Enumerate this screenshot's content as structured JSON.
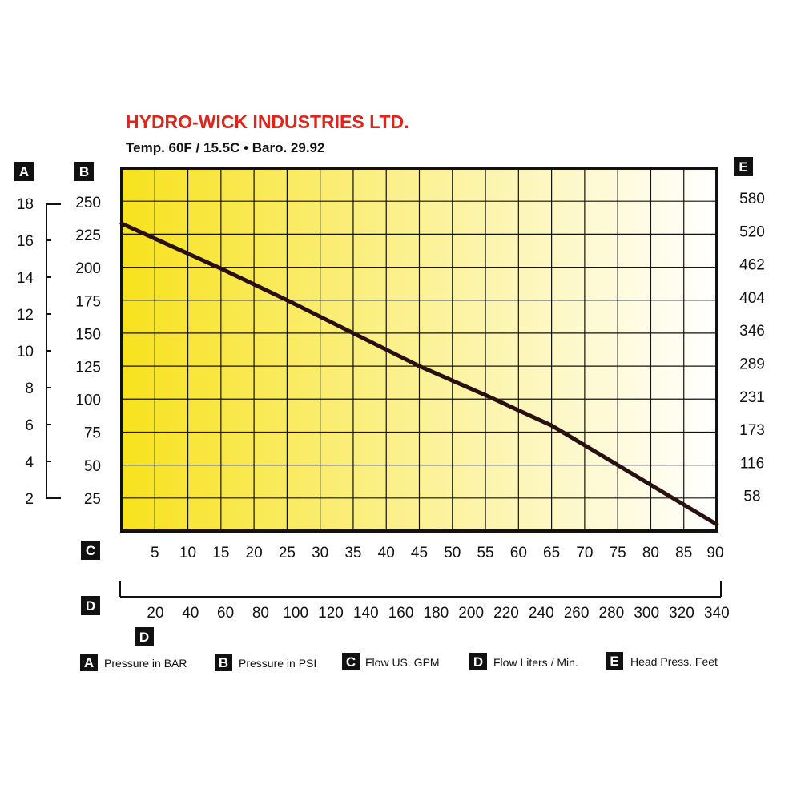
{
  "header": {
    "company": "HYDRO-WICK INDUSTRIES LTD.",
    "conditions": "Temp. 60F / 15.5C  •  Baro. 29.92"
  },
  "axis_badges": {
    "A": "A",
    "B": "B",
    "C": "C",
    "D": "D",
    "D2": "D",
    "E": "E"
  },
  "legend": [
    {
      "letter": "A",
      "label": "Pressure in BAR"
    },
    {
      "letter": "B",
      "label": "Pressure in PSI"
    },
    {
      "letter": "C",
      "label": "Flow US. GPM"
    },
    {
      "letter": "D",
      "label": "Flow Liters / Min."
    },
    {
      "letter": "E",
      "label": "Head Press. Feet"
    }
  ],
  "colors": {
    "title_red": "#e2231a",
    "gradient_start": "#f7e21c",
    "gradient_end": "#ffffff",
    "line": "#2a0f10",
    "grid": "#111111"
  },
  "chart_data": {
    "type": "line",
    "title": "HYDRO-WICK INDUSTRIES LTD.",
    "subtitle": "Temp. 60F / 15.5C  •  Baro. 29.92",
    "x_axis": {
      "label": "Flow US. GPM",
      "ticks": [
        "5",
        "10",
        "15",
        "20",
        "25",
        "30",
        "35",
        "40",
        "45",
        "50",
        "55",
        "60",
        "65",
        "70",
        "75",
        "80",
        "85",
        "90"
      ],
      "range": [
        0,
        90
      ]
    },
    "x_axis_secondary": {
      "label": "Flow Liters / Min.",
      "ticks": [
        "20",
        "40",
        "60",
        "80",
        "100",
        "120",
        "140",
        "160",
        "180",
        "200",
        "220",
        "240",
        "260",
        "280",
        "300",
        "320",
        "340"
      ]
    },
    "y_axis": {
      "label": "Pressure in PSI",
      "ticks": [
        "250",
        "225",
        "200",
        "175",
        "150",
        "125",
        "100",
        "75",
        "50",
        "25"
      ],
      "range": [
        0,
        275
      ]
    },
    "y_axis_bar": {
      "label": "Pressure in BAR",
      "ticks": [
        "18",
        "16",
        "14",
        "12",
        "10",
        "8",
        "6",
        "4",
        "2"
      ]
    },
    "y_axis_head": {
      "label": "Head Press. Feet",
      "ticks": [
        "580",
        "520",
        "462",
        "404",
        "346",
        "289",
        "231",
        "173",
        "116",
        "58"
      ]
    },
    "series": [
      {
        "points": [
          [
            0,
            233
          ],
          [
            15,
            199
          ],
          [
            25,
            175
          ],
          [
            35,
            150
          ],
          [
            45,
            125
          ],
          [
            55,
            103
          ],
          [
            65,
            80
          ],
          [
            75,
            50
          ],
          [
            90,
            5
          ]
        ]
      }
    ],
    "grid": true
  }
}
